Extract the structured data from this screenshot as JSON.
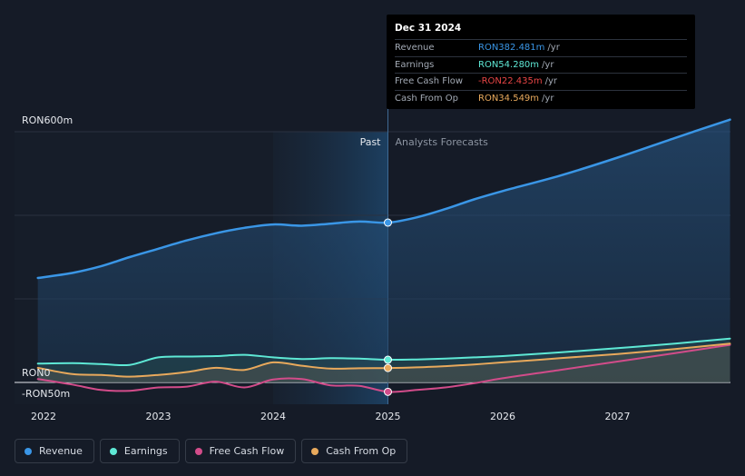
{
  "chart_data": {
    "type": "line",
    "currency_unit": "RON",
    "x": [
      2021.95,
      2022.25,
      2022.5,
      2022.75,
      2023.0,
      2023.25,
      2023.5,
      2023.75,
      2024.0,
      2024.25,
      2024.5,
      2024.75,
      2025.0,
      2025.25,
      2025.5,
      2025.75,
      2026.0,
      2026.5,
      2027.0,
      2027.5,
      2027.98
    ],
    "x_ticks": [
      2022,
      2023,
      2024,
      2025,
      2026,
      2027
    ],
    "x_tick_labels": [
      "2022",
      "2023",
      "2024",
      "2025",
      "2026",
      "2027"
    ],
    "ylim": [
      -50,
      600
    ],
    "y_tick_labels": [
      {
        "value": 600,
        "label": "RON600m"
      },
      {
        "value": 0,
        "label": "RON0"
      },
      {
        "value": -50,
        "label": "-RON50m"
      }
    ],
    "divider_x": 2025.0,
    "past_label": "Past",
    "forecast_label": "Analysts Forecasts",
    "series": [
      {
        "name": "Revenue",
        "color": "#3a96e6",
        "values": [
          250,
          262,
          278,
          300,
          320,
          340,
          357,
          370,
          378,
          375,
          380,
          385,
          382.481,
          395,
          415,
          438,
          458,
          495,
          538,
          585,
          629
        ]
      },
      {
        "name": "Earnings",
        "color": "#5ee8d5",
        "values": [
          45,
          46,
          44,
          42,
          60,
          62,
          63,
          66,
          60,
          56,
          58,
          57,
          54.28,
          55,
          57,
          60,
          63,
          72,
          82,
          93,
          105
        ]
      },
      {
        "name": "Free Cash Flow",
        "color": "#d24c8a",
        "values": [
          8,
          -5,
          -18,
          -20,
          -12,
          -10,
          2,
          -12,
          7,
          8,
          -7,
          -8,
          -22.435,
          -18,
          -12,
          -2,
          10,
          30,
          50,
          70,
          90
        ]
      },
      {
        "name": "Cash From Op",
        "color": "#e8a95c",
        "values": [
          35,
          20,
          18,
          14,
          18,
          25,
          35,
          30,
          48,
          40,
          33,
          34,
          34.549,
          36,
          39,
          43,
          48,
          58,
          68,
          80,
          93
        ]
      }
    ]
  },
  "tooltip": {
    "date": "Dec 31 2024",
    "rows": [
      {
        "label": "Revenue",
        "value": "RON382.481m",
        "unit": "/yr",
        "color": "#3a96e6"
      },
      {
        "label": "Earnings",
        "value": "RON54.280m",
        "unit": "/yr",
        "color": "#5ee8d5"
      },
      {
        "label": "Free Cash Flow",
        "value": "-RON22.435m",
        "unit": "/yr",
        "color": "#e84545"
      },
      {
        "label": "Cash From Op",
        "value": "RON34.549m",
        "unit": "/yr",
        "color": "#e8a95c"
      }
    ]
  },
  "legend": [
    {
      "label": "Revenue",
      "color": "#3a96e6"
    },
    {
      "label": "Earnings",
      "color": "#5ee8d5"
    },
    {
      "label": "Free Cash Flow",
      "color": "#d24c8a"
    },
    {
      "label": "Cash From Op",
      "color": "#e8a95c"
    }
  ]
}
